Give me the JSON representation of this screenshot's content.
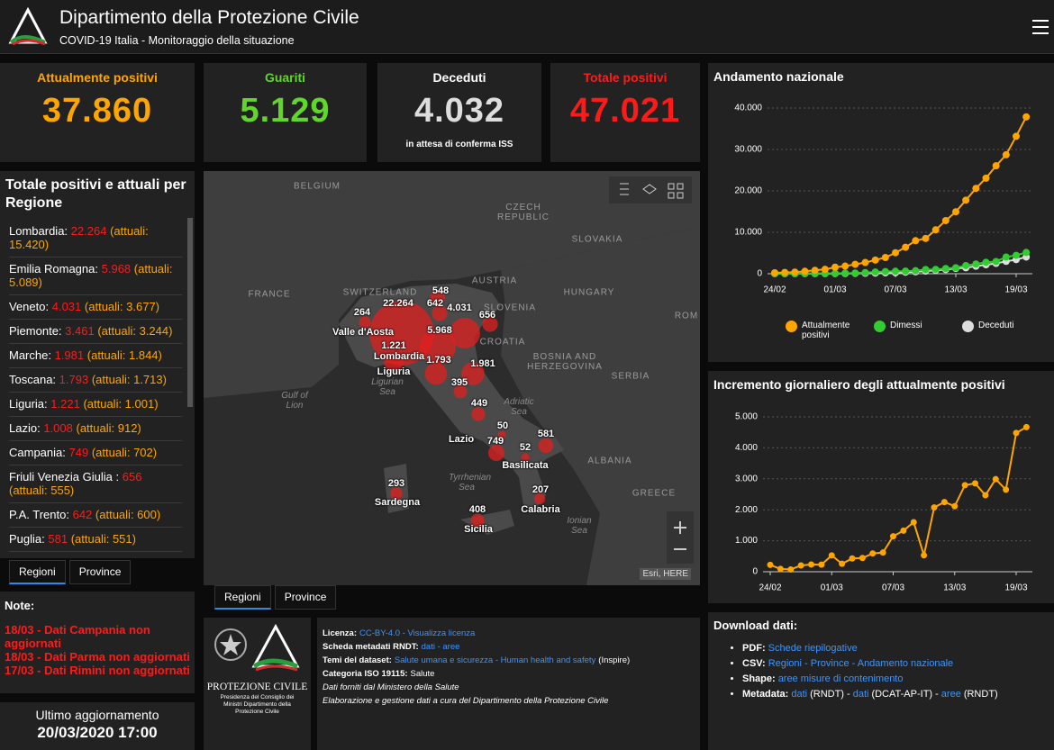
{
  "header": {
    "title": "Dipartimento della Protezione Civile",
    "subtitle": "COVID-19 Italia - Monitoraggio della situazione"
  },
  "kpis": [
    {
      "label": "Attualmente positivi",
      "value": "37.860",
      "color": "#ffa500"
    },
    {
      "label": "Guariti",
      "value": "5.129",
      "color": "#5fd629"
    },
    {
      "label": "Deceduti",
      "value": "4.032",
      "note": "in attesa di conferma ISS",
      "color": "#dddddd"
    },
    {
      "label": "Totale positivi",
      "value": "47.021",
      "color": "#ff1a1a"
    }
  ],
  "regions": {
    "title": "Totale positivi e attuali per Regione",
    "items": [
      {
        "name": "Lombardia:",
        "total": "22.264",
        "current": "(attuali: 15.420)"
      },
      {
        "name": "Emilia Romagna:",
        "total": "5.968",
        "current": "(attuali: 5.089)"
      },
      {
        "name": "Veneto:",
        "total": "4.031",
        "current": "(attuali: 3.677)"
      },
      {
        "name": "Piemonte:",
        "total": "3.461",
        "current": "(attuali: 3.244)"
      },
      {
        "name": "Marche:",
        "total": "1.981",
        "current": "(attuali: 1.844)"
      },
      {
        "name": "Toscana:",
        "total": "1.793",
        "current": "(attuali: 1.713)"
      },
      {
        "name": "Liguria:",
        "total": "1.221",
        "current": "(attuali: 1.001)"
      },
      {
        "name": "Lazio:",
        "total": "1.008",
        "current": "(attuali: 912)"
      },
      {
        "name": "Campania:",
        "total": "749",
        "current": "(attuali: 702)"
      },
      {
        "name": "Friuli Venezia Giulia :",
        "total": "656",
        "current": "(attuali: 555)"
      },
      {
        "name": "P.A. Trento:",
        "total": "642",
        "current": "(attuali: 600)"
      },
      {
        "name": "Puglia:",
        "total": "581",
        "current": "(attuali: 551)"
      }
    ],
    "tabs": [
      "Regioni",
      "Province"
    ]
  },
  "notes": {
    "title": "Note:",
    "items": [
      "18/03 - Dati Campania non aggiornati",
      "18/03 - Dati Parma non aggiornati",
      "17/03 - Dati Rimini non aggiornati"
    ]
  },
  "last_update": {
    "label": "Ultimo aggiornamento",
    "value": "20/03/2020 17:00"
  },
  "map": {
    "country_labels": [
      "BELGIUM",
      "CZECH REPUBLIC",
      "SLOVAKIA",
      "AUSTRIA",
      "HUNGARY",
      "FRANCE",
      "SWITZERLAND",
      "SLOVENIA",
      "ROM",
      "CROATIA",
      "BOSNIA AND HERZEGOVINA",
      "SERBIA",
      "ALBANIA",
      "GREECE"
    ],
    "sea_labels": [
      "Gulf of Lion",
      "Ligurian Sea",
      "Adriatic Sea",
      "Tyrrhenian Sea",
      "Ionian Sea"
    ],
    "region_labels": [
      "Valle d'Aosta",
      "Lombardia",
      "Liguria",
      "Lazio",
      "Basilicata",
      "Sardegna",
      "Calabria",
      "Sicilia"
    ],
    "bubbles": [
      {
        "label": "22.264",
        "value": 22264
      },
      {
        "label": "5.968",
        "value": 5968
      },
      {
        "label": "4.031",
        "value": 4031
      },
      {
        "label": "1.981",
        "value": 1981
      },
      {
        "label": "1.793",
        "value": 1793
      },
      {
        "label": "1.221",
        "value": 1221
      },
      {
        "label": "749",
        "value": 749
      },
      {
        "label": "656",
        "value": 656
      },
      {
        "label": "642",
        "value": 642
      },
      {
        "label": "581",
        "value": 581
      },
      {
        "label": "548",
        "value": 548
      },
      {
        "label": "449",
        "value": 449
      },
      {
        "label": "408",
        "value": 408
      },
      {
        "label": "395",
        "value": 395
      },
      {
        "label": "293",
        "value": 293
      },
      {
        "label": "264",
        "value": 264
      },
      {
        "label": "207",
        "value": 207
      },
      {
        "label": "52",
        "value": 52
      },
      {
        "label": "50",
        "value": 50
      }
    ],
    "attribution": "Esri, HERE",
    "tabs": [
      "Regioni",
      "Province"
    ]
  },
  "logo": {
    "name": "PROTEZIONE CIVILE",
    "caption": "Presidenza del Consiglio dei Ministri Dipartimento della Protezione Civile"
  },
  "license": {
    "rows": [
      [
        {
          "text": "Licenza:",
          "style": "bold"
        },
        {
          "text": "CC-BY-4.0 - Visualizza licenza",
          "style": "link"
        }
      ],
      [
        {
          "text": "Scheda metadati RNDT:",
          "style": "bold"
        },
        {
          "text": "dati - aree",
          "style": "link"
        }
      ],
      [
        {
          "text": "Temi del dataset:",
          "style": "bold"
        },
        {
          "text": "Salute umana e sicurezza - Human health and safety",
          "style": "link"
        },
        {
          "text": "(Inspire)",
          "style": "plain"
        }
      ],
      [
        {
          "text": "Categoria ISO 19115:",
          "style": "bold"
        },
        {
          "text": "Salute",
          "style": "plain"
        }
      ],
      [
        {
          "text": "Dati forniti dal Ministero della Salute",
          "style": "italic"
        }
      ],
      [
        {
          "text": "Elaborazione e gestione dati a cura del Dipartimento della Protezione Civile",
          "style": "italic"
        }
      ]
    ]
  },
  "download": {
    "title": "Download dati:",
    "items": [
      [
        {
          "text": "PDF:",
          "style": "bold"
        },
        {
          "text": "Schede riepilogative",
          "style": "link"
        }
      ],
      [
        {
          "text": "CSV:",
          "style": "bold"
        },
        {
          "text": "Regioni - Province - Andamento nazionale",
          "style": "link"
        }
      ],
      [
        {
          "text": "Shape:",
          "style": "bold"
        },
        {
          "text": "aree misure di contenimento",
          "style": "link"
        }
      ],
      [
        {
          "text": "Metadata:",
          "style": "bold"
        },
        {
          "text": "dati",
          "style": "link"
        },
        {
          "text": "(RNDT) -",
          "style": "plain"
        },
        {
          "text": "dati",
          "style": "link"
        },
        {
          "text": "(DCAT-AP-IT) -",
          "style": "plain"
        },
        {
          "text": "aree",
          "style": "link"
        },
        {
          "text": "(RNDT)",
          "style": "plain"
        }
      ]
    ]
  },
  "chart_data": [
    {
      "type": "line",
      "title": "Andamento nazionale",
      "categories": [
        "24/02",
        null,
        null,
        null,
        null,
        null,
        "01/03",
        null,
        null,
        null,
        null,
        null,
        "07/03",
        null,
        null,
        null,
        null,
        null,
        "13/03",
        null,
        null,
        null,
        null,
        null,
        "19/03",
        null
      ],
      "series": [
        {
          "name": "Attualmente positivi",
          "color": "#ffa500",
          "values": [
            221,
            311,
            385,
            588,
            821,
            1049,
            1577,
            1835,
            2263,
            2706,
            3296,
            3916,
            5061,
            6387,
            7985,
            8514,
            10590,
            12839,
            14955,
            17750,
            20603,
            23073,
            26062,
            28710,
            33190,
            37860
          ]
        },
        {
          "name": "Dimessi",
          "color": "#33cc33",
          "values": [
            1,
            1,
            3,
            45,
            46,
            50,
            83,
            149,
            160,
            276,
            414,
            523,
            589,
            622,
            724,
            1004,
            1045,
            1258,
            1439,
            1966,
            2335,
            2749,
            2941,
            4025,
            4440,
            5129
          ]
        },
        {
          "name": "Deceduti",
          "color": "#dddddd",
          "values": [
            7,
            10,
            12,
            17,
            21,
            29,
            34,
            52,
            79,
            107,
            148,
            197,
            233,
            366,
            463,
            631,
            827,
            1016,
            1266,
            1441,
            1809,
            2158,
            2503,
            2978,
            3405,
            4032
          ]
        }
      ],
      "ylim": [
        0,
        40000
      ],
      "yticks": [
        0,
        {
          "value": 10000,
          "label": "10.000"
        },
        {
          "value": 20000,
          "label": "20.000"
        },
        {
          "value": 30000,
          "label": "30.000"
        },
        {
          "value": 40000,
          "label": "40.000"
        }
      ],
      "grid": true,
      "legend": "bottom"
    },
    {
      "type": "line",
      "title": "Incremento giornaliero degli attualmente positivi",
      "categories": [
        "24/02",
        null,
        null,
        null,
        null,
        null,
        "01/03",
        null,
        null,
        null,
        null,
        null,
        "07/03",
        null,
        null,
        null,
        null,
        null,
        "13/03",
        null,
        null,
        null,
        null,
        null,
        "19/03",
        null
      ],
      "values": [
        221,
        90,
        74,
        203,
        233,
        228,
        528,
        258,
        428,
        443,
        590,
        620,
        1145,
        1326,
        1598,
        529,
        2076,
        2249,
        2116,
        2795,
        2853,
        2470,
        2989,
        2648,
        4480,
        4670
      ],
      "color": "#ffa500",
      "ylim": [
        0,
        5000
      ],
      "yticks": [
        0,
        {
          "value": 1000,
          "label": "1.000"
        },
        {
          "value": 2000,
          "label": "2.000"
        },
        {
          "value": 3000,
          "label": "3.000"
        },
        {
          "value": 4000,
          "label": "4.000"
        },
        {
          "value": 5000,
          "label": "5.000"
        }
      ],
      "grid": true
    }
  ]
}
